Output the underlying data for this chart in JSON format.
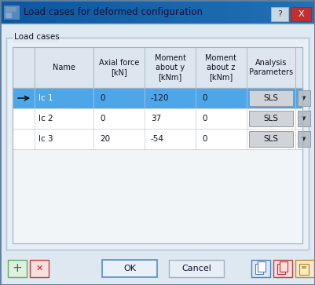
{
  "title": "Load cases for deformed configuration",
  "dialog_bg": "#dde8f0",
  "titlebar_bg": "#b8d0e8",
  "group_label": "Load cases",
  "col_headers": [
    "",
    "Name",
    "Axial force\n[kN]",
    "Moment\nabout y\n[kNm]",
    "Moment\nabout z\n[kNm]",
    "Analysis\nParameters"
  ],
  "rows": [
    {
      "name": "lc 1",
      "axial": "0",
      "moment_y": "-120",
      "moment_z": "0",
      "analysis": "SLS",
      "selected": true
    },
    {
      "name": "lc 2",
      "axial": "0",
      "moment_y": "37",
      "moment_z": "0",
      "analysis": "SLS",
      "selected": false
    },
    {
      "name": "lc 3",
      "axial": "20",
      "moment_y": "-54",
      "moment_z": "0",
      "analysis": "SLS",
      "selected": false
    }
  ],
  "selected_row_color": "#4da6e8",
  "ok_label": "OK",
  "cancel_label": "Cancel",
  "font_size_header": 7,
  "font_size_cell": 7.5,
  "font_size_title": 8.5
}
